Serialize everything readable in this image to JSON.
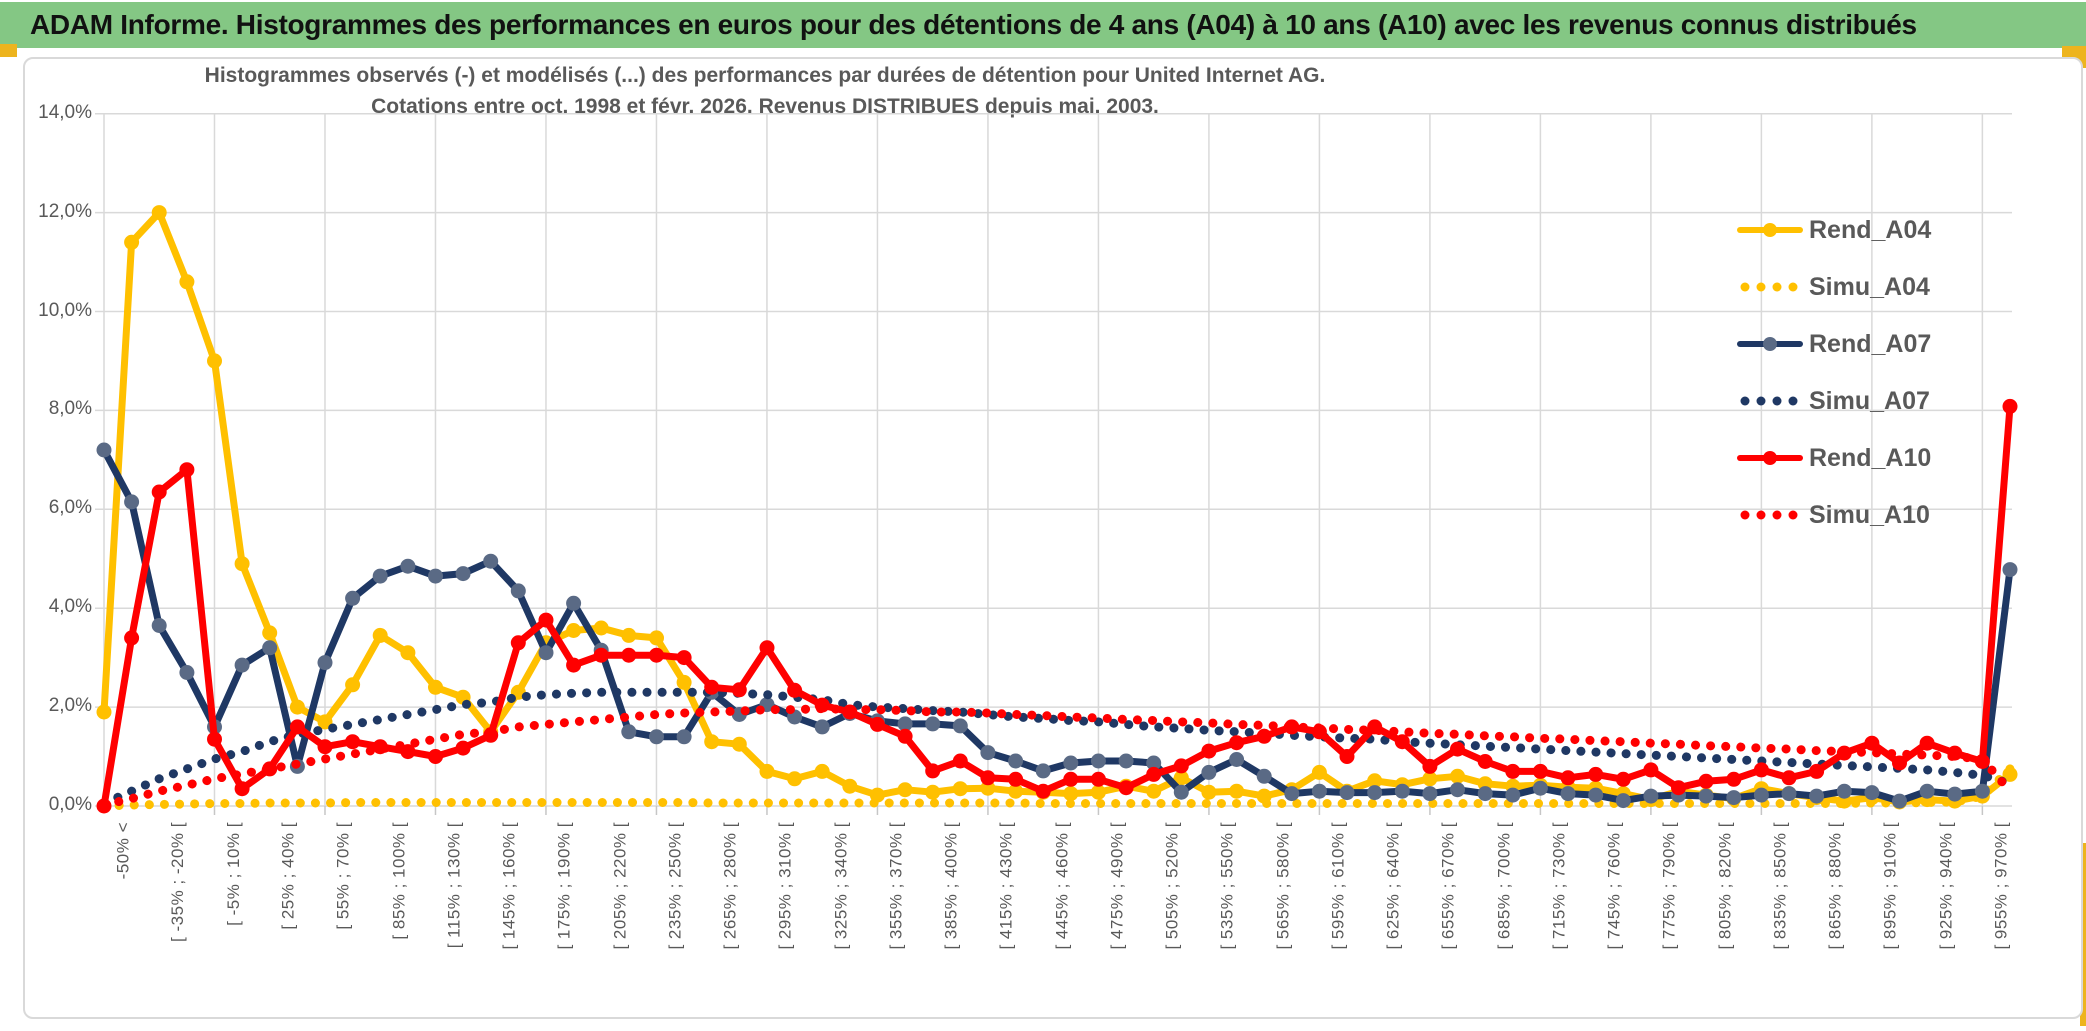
{
  "header": {
    "title": "ADAM Informe. Histogrammes des performances en euros pour des détentions de 4 ans (A04) à 10 ans (A10) avec les revenus connus distribués"
  },
  "chart": {
    "title_line1": "Histogrammes observés (-) et modélisés (...) des performances par durées de détention pour United Internet AG.",
    "title_line2": "Cotations entre oct. 1998 et févr. 2026. Revenus DISTRIBUES depuis mai. 2003."
  },
  "colors": {
    "header_green": "#84C784",
    "gold_accent": "#EDB41E",
    "series_gold": "#FFC000",
    "series_navy": "#1F3864",
    "navy_marker": "#5A6A85",
    "series_red": "#FF0000",
    "gridline": "#D9D9D9",
    "axis_text": "#595959"
  },
  "chart_data": {
    "type": "line",
    "title": "Histogrammes observés (-) et modélisés (...) des performances par durées de détention pour United Internet AG. Cotations entre oct. 1998 et févr. 2026. Revenus DISTRIBUES depuis mai. 2003.",
    "grid": true,
    "legend_position": "right",
    "ylim": [
      0,
      14
    ],
    "y_unit": "percent",
    "y_tick_labels": [
      "0,0%",
      "2,0%",
      "4,0%",
      "6,0%",
      "8,0%",
      "10,0%",
      "12,0%",
      "14,0%"
    ],
    "x_bins": 70,
    "x_label_every_n_bins": 2,
    "x_gridline_every_n_bins": 4,
    "categories": [
      "-50% <",
      "[ -35% ; -20% [",
      "[ -5% ; 10% [",
      "[ 25% ; 40% [",
      "[ 55% ; 70% [",
      "[ 85% ; 100% [",
      "[ 115% ; 130% [",
      "[ 145% ; 160% [",
      "[ 175% ; 190% [",
      "[ 205% ; 220% [",
      "[ 235% ; 250% [",
      "[ 265% ; 280% [",
      "[ 295% ; 310% [",
      "[ 325% ; 340% [",
      "[ 355% ; 370% [",
      "[ 385% ; 400% [",
      "[ 415% ; 430% [",
      "[ 445% ; 460% [",
      "[ 475% ; 490% [",
      "[ 505% ; 520% [",
      "[ 535% ; 550% [",
      "[ 565% ; 580% [",
      "[ 595% ; 610% [",
      "[ 625% ; 640% [",
      "[ 655% ; 670% [",
      "[ 685% ; 700% [",
      "[ 715% ; 730% [",
      "[ 745% ; 760% [",
      "[ 775% ; 790% [",
      "[ 805% ; 820% [",
      "[ 835% ; 850% [",
      "[ 865% ; 880% [",
      "[ 895% ; 910% [",
      "[ 925% ; 940% [",
      "[ 955% ; 970% ["
    ],
    "series": [
      {
        "name": "Rend_A04",
        "style": "solid",
        "color": "#FFC000",
        "marker_color": "#FFC000",
        "values": [
          1.9,
          11.4,
          12.0,
          10.6,
          9.0,
          4.9,
          3.5,
          2.0,
          1.7,
          2.45,
          3.45,
          3.1,
          2.4,
          2.2,
          1.5,
          2.3,
          3.3,
          3.55,
          3.6,
          3.45,
          3.4,
          2.5,
          1.3,
          1.25,
          0.7,
          0.55,
          0.7,
          0.4,
          0.22,
          0.33,
          0.28,
          0.35,
          0.36,
          0.3,
          0.28,
          0.25,
          0.28,
          0.4,
          0.3,
          0.57,
          0.28,
          0.3,
          0.2,
          0.33,
          0.68,
          0.3,
          0.51,
          0.43,
          0.55,
          0.6,
          0.45,
          0.4,
          0.42,
          0.38,
          0.36,
          0.25,
          0.13,
          0.3,
          0.22,
          0.15,
          0.35,
          0.25,
          0.17,
          0.1,
          0.17,
          0.08,
          0.13,
          0.1,
          0.2,
          0.64
        ]
      },
      {
        "name": "Simu_A04",
        "style": "dotted",
        "color": "#FFC000",
        "values": [
          0.0,
          0.02,
          0.03,
          0.04,
          0.05,
          0.05,
          0.06,
          0.06,
          0.06,
          0.07,
          0.07,
          0.07,
          0.07,
          0.07,
          0.07,
          0.07,
          0.07,
          0.07,
          0.07,
          0.07,
          0.07,
          0.07,
          0.06,
          0.06,
          0.06,
          0.06,
          0.06,
          0.06,
          0.06,
          0.06,
          0.06,
          0.06,
          0.06,
          0.06,
          0.05,
          0.05,
          0.05,
          0.05,
          0.05,
          0.05,
          0.05,
          0.05,
          0.05,
          0.05,
          0.05,
          0.05,
          0.05,
          0.05,
          0.05,
          0.05,
          0.05,
          0.05,
          0.05,
          0.05,
          0.05,
          0.05,
          0.05,
          0.05,
          0.05,
          0.05,
          0.05,
          0.05,
          0.05,
          0.05,
          0.06,
          0.06,
          0.07,
          0.08,
          0.2,
          0.75
        ]
      },
      {
        "name": "Rend_A07",
        "style": "solid",
        "color": "#1F3864",
        "marker_color": "#5A6A85",
        "values": [
          7.2,
          6.15,
          3.65,
          2.7,
          1.6,
          2.85,
          3.2,
          0.8,
          2.9,
          4.2,
          4.65,
          4.85,
          4.65,
          4.7,
          4.95,
          4.35,
          3.1,
          4.1,
          3.15,
          1.5,
          1.4,
          1.4,
          2.3,
          1.85,
          2.05,
          1.8,
          1.6,
          1.87,
          1.72,
          1.66,
          1.66,
          1.62,
          1.08,
          0.91,
          0.71,
          0.87,
          0.91,
          0.91,
          0.87,
          0.28,
          0.68,
          0.94,
          0.6,
          0.25,
          0.3,
          0.27,
          0.27,
          0.3,
          0.25,
          0.33,
          0.25,
          0.22,
          0.36,
          0.25,
          0.22,
          0.11,
          0.2,
          0.22,
          0.2,
          0.17,
          0.22,
          0.25,
          0.2,
          0.3,
          0.27,
          0.1,
          0.3,
          0.24,
          0.3,
          4.78
        ]
      },
      {
        "name": "Simu_A07",
        "style": "dotted",
        "color": "#1F3864",
        "values": [
          0.05,
          0.3,
          0.55,
          0.75,
          0.95,
          1.1,
          1.3,
          1.45,
          1.55,
          1.65,
          1.75,
          1.85,
          1.95,
          2.05,
          2.1,
          2.2,
          2.25,
          2.28,
          2.3,
          2.3,
          2.3,
          2.3,
          2.3,
          2.28,
          2.25,
          2.2,
          2.15,
          2.05,
          2.0,
          1.97,
          1.93,
          1.9,
          1.85,
          1.8,
          1.77,
          1.73,
          1.7,
          1.65,
          1.6,
          1.57,
          1.53,
          1.5,
          1.47,
          1.43,
          1.4,
          1.37,
          1.35,
          1.3,
          1.27,
          1.24,
          1.21,
          1.18,
          1.15,
          1.12,
          1.09,
          1.06,
          1.03,
          1.0,
          0.97,
          0.94,
          0.91,
          0.88,
          0.85,
          0.82,
          0.79,
          0.76,
          0.73,
          0.68,
          0.62,
          0.45
        ]
      },
      {
        "name": "Simu_A10",
        "style": "dotted",
        "color": "#FF0000",
        "values": [
          0.02,
          0.15,
          0.3,
          0.42,
          0.55,
          0.65,
          0.75,
          0.85,
          0.95,
          1.05,
          1.15,
          1.25,
          1.35,
          1.45,
          1.5,
          1.6,
          1.65,
          1.7,
          1.75,
          1.8,
          1.85,
          1.88,
          1.9,
          1.92,
          1.95,
          1.95,
          1.97,
          1.95,
          1.95,
          1.93,
          1.9,
          1.9,
          1.88,
          1.85,
          1.83,
          1.8,
          1.78,
          1.75,
          1.73,
          1.7,
          1.68,
          1.65,
          1.63,
          1.6,
          1.58,
          1.55,
          1.53,
          1.5,
          1.47,
          1.45,
          1.42,
          1.4,
          1.37,
          1.35,
          1.32,
          1.3,
          1.27,
          1.25,
          1.22,
          1.2,
          1.17,
          1.15,
          1.12,
          1.1,
          1.08,
          1.05,
          1.03,
          1.0,
          0.95,
          0.3
        ]
      },
      {
        "name": "Rend_A10",
        "style": "solid",
        "color": "#FF0000",
        "marker_color": "#FF0000",
        "values": [
          0.0,
          3.4,
          6.35,
          6.8,
          1.35,
          0.35,
          0.75,
          1.6,
          1.2,
          1.3,
          1.2,
          1.1,
          1.0,
          1.17,
          1.43,
          3.3,
          3.76,
          2.85,
          3.05,
          3.05,
          3.05,
          3.0,
          2.4,
          2.35,
          3.2,
          2.34,
          2.04,
          1.9,
          1.65,
          1.41,
          0.71,
          0.91,
          0.57,
          0.54,
          0.3,
          0.54,
          0.54,
          0.37,
          0.64,
          0.81,
          1.11,
          1.28,
          1.41,
          1.6,
          1.5,
          1.0,
          1.6,
          1.3,
          0.8,
          1.15,
          0.9,
          0.7,
          0.7,
          0.57,
          0.64,
          0.54,
          0.73,
          0.37,
          0.5,
          0.54,
          0.73,
          0.57,
          0.7,
          1.07,
          1.27,
          0.87,
          1.27,
          1.07,
          0.9,
          8.08
        ]
      }
    ],
    "legend_order": [
      "Rend_A04",
      "Simu_A04",
      "Rend_A07",
      "Simu_A07",
      "Rend_A10",
      "Simu_A10"
    ]
  }
}
